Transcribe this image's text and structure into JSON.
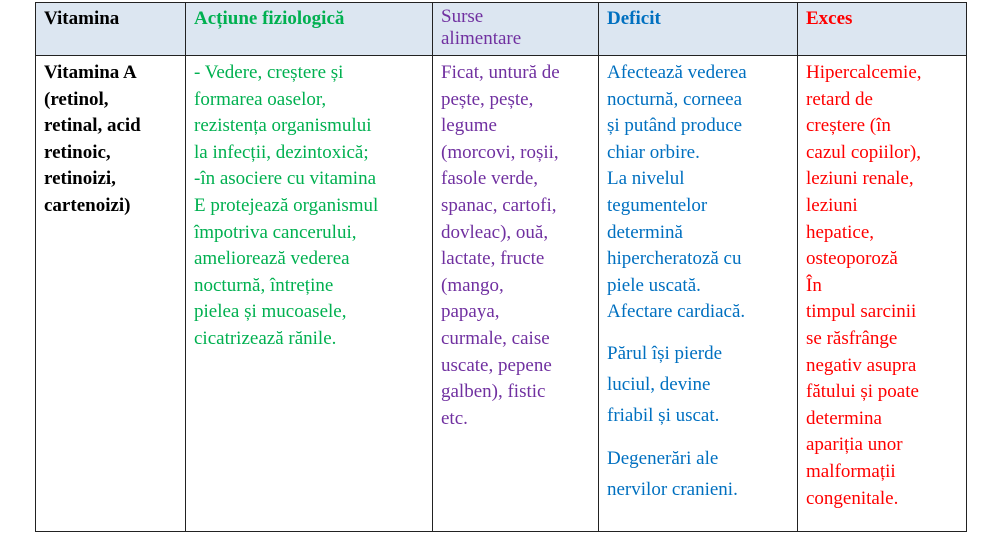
{
  "colors": {
    "header_bg": "#dce6f1",
    "col_vitamina": "#000000",
    "col_actiune": "#00b050",
    "col_surse": "#7030a0",
    "col_deficit": "#0070c0",
    "col_exces": "#ff0000"
  },
  "header": {
    "vitamina": "Vitamina",
    "actiune": "Acțiune fiziologică",
    "surse": [
      "Surse",
      "alimentare"
    ],
    "deficit": "Deficit",
    "exces": "Exces"
  },
  "row": {
    "vitamina": [
      "Vitamina A",
      "(retinol,",
      "retinal, acid",
      "retinoic,",
      "retinoizi,",
      "cartenoizi)"
    ],
    "actiune": [
      "- Vedere, creștere și",
      "formarea oaselor,",
      "rezistența organismului",
      "la infecții, dezintoxică;",
      "-în asociere cu vitamina",
      "E protejează organismul",
      "împotriva cancerului,",
      "ameliorează vederea",
      "nocturnă, întreține",
      "pielea și mucoasele,",
      "cicatrizează rănile."
    ],
    "surse": [
      "Ficat, untură de",
      "pește, pește,",
      "legume",
      "(morcovi, roșii,",
      "fasole verde,",
      "spanac, cartofi,",
      "dovleac), ouă,",
      "lactate, fructe",
      "(mango,",
      "papaya,",
      "curmale, caise",
      "uscate, pepene",
      "galben), fistic",
      "etc."
    ],
    "deficit": {
      "p1": [
        "Afectează vederea",
        "nocturnă, corneea",
        "și putând produce",
        "chiar orbire.",
        "La nivelul",
        "tegumentelor",
        "determină",
        "hipercheratoză cu",
        "piele uscată.",
        "Afectare cardiacă."
      ],
      "p2": [
        "Părul își pierde",
        "luciul, devine",
        "friabil și uscat."
      ],
      "p3": [
        "Degenerări ale",
        "nervilor cranieni."
      ]
    },
    "exces": [
      "Hipercalcemie,",
      "retard de",
      "creștere (în",
      "cazul copiilor),",
      "leziuni renale,",
      "leziuni",
      "hepatice,",
      "osteoporoză",
      "În",
      "timpul sarcinii",
      "se răsfrânge",
      "negativ asupra",
      "fătului și poate",
      "determina",
      "apariția unor",
      "malformații",
      "congenitale."
    ]
  }
}
